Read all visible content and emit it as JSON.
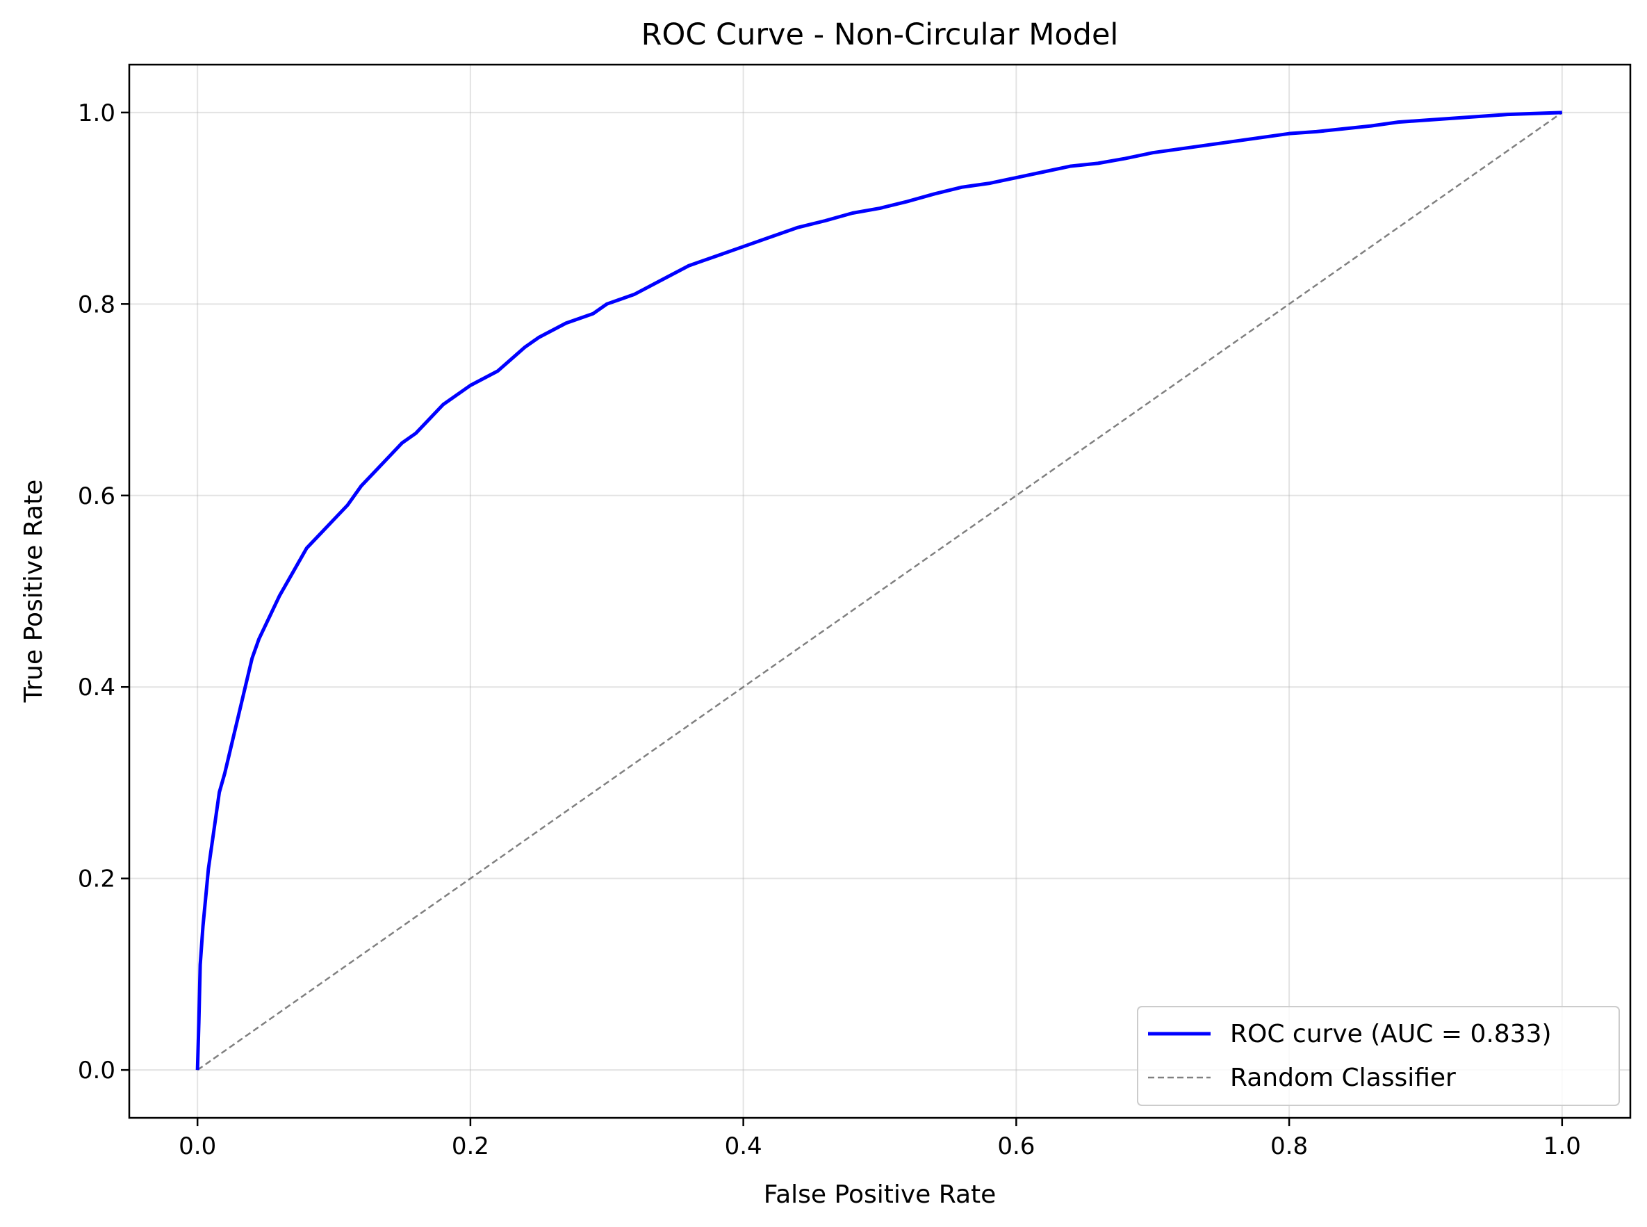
{
  "chart_data": {
    "type": "line",
    "title": "ROC Curve - Non-Circular Model",
    "xlabel": "False Positive Rate",
    "ylabel": "True Positive Rate",
    "xlim": [
      -0.05,
      1.05
    ],
    "ylim": [
      -0.05,
      1.05
    ],
    "x_ticks": [
      "0.0",
      "0.2",
      "0.4",
      "0.6",
      "0.8",
      "1.0"
    ],
    "y_ticks": [
      "0.0",
      "0.2",
      "0.4",
      "0.6",
      "0.8",
      "1.0"
    ],
    "grid": true,
    "legend_position": "lower-right",
    "series": [
      {
        "name": "ROC curve (AUC = 0.833)",
        "color": "#0000ff",
        "style": "solid",
        "x": [
          0.0,
          0.001,
          0.002,
          0.004,
          0.006,
          0.008,
          0.01,
          0.013,
          0.016,
          0.02,
          0.025,
          0.03,
          0.035,
          0.04,
          0.045,
          0.05,
          0.055,
          0.06,
          0.07,
          0.08,
          0.09,
          0.1,
          0.11,
          0.12,
          0.13,
          0.14,
          0.15,
          0.16,
          0.17,
          0.18,
          0.2,
          0.22,
          0.24,
          0.25,
          0.27,
          0.29,
          0.3,
          0.32,
          0.34,
          0.36,
          0.38,
          0.4,
          0.42,
          0.44,
          0.46,
          0.48,
          0.5,
          0.52,
          0.54,
          0.56,
          0.58,
          0.6,
          0.62,
          0.64,
          0.66,
          0.68,
          0.7,
          0.72,
          0.74,
          0.76,
          0.78,
          0.8,
          0.82,
          0.84,
          0.86,
          0.88,
          0.9,
          0.92,
          0.94,
          0.96,
          0.98,
          1.0
        ],
        "y": [
          0.0,
          0.05,
          0.11,
          0.15,
          0.18,
          0.21,
          0.23,
          0.26,
          0.29,
          0.31,
          0.34,
          0.37,
          0.4,
          0.43,
          0.45,
          0.465,
          0.48,
          0.495,
          0.52,
          0.545,
          0.56,
          0.575,
          0.59,
          0.61,
          0.625,
          0.64,
          0.655,
          0.665,
          0.68,
          0.695,
          0.715,
          0.73,
          0.755,
          0.765,
          0.78,
          0.79,
          0.8,
          0.81,
          0.825,
          0.84,
          0.85,
          0.86,
          0.87,
          0.88,
          0.887,
          0.895,
          0.9,
          0.907,
          0.915,
          0.922,
          0.926,
          0.932,
          0.938,
          0.944,
          0.947,
          0.952,
          0.958,
          0.962,
          0.966,
          0.97,
          0.974,
          0.978,
          0.98,
          0.983,
          0.986,
          0.99,
          0.992,
          0.994,
          0.996,
          0.998,
          0.999,
          1.0
        ]
      },
      {
        "name": "Random Classifier",
        "color": "#808080",
        "style": "dashed",
        "x": [
          0.0,
          1.0
        ],
        "y": [
          0.0,
          1.0
        ]
      }
    ]
  }
}
